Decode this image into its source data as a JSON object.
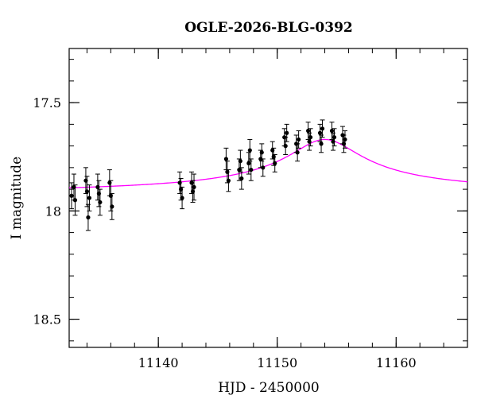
{
  "chart_data": {
    "type": "scatter",
    "title": "OGLE-2026-BLG-0392",
    "xlabel": "HJD - 2450000",
    "ylabel": "I magnitude",
    "xlim": [
      11132.5,
      11166
    ],
    "ylim": [
      17.25,
      18.63
    ],
    "y_inverted": true,
    "grid": false,
    "x_ticks": [
      11140,
      11150,
      11160
    ],
    "y_ticks": [
      17.5,
      18,
      18.5
    ],
    "x_tick_labels": [
      "11140",
      "11150",
      "11160"
    ],
    "y_tick_labels": [
      "17.5",
      "18",
      "18.5"
    ],
    "x_minor_step": 2,
    "y_minor_step": 0.1,
    "colors": {
      "points": "#000000",
      "model": "#ff00ff",
      "frame": "#000000"
    },
    "model": {
      "t0": 11154.0,
      "base_mag": 17.93,
      "peak_mag": 17.67,
      "width_days": 5.5
    },
    "series": [
      {
        "kind": "points_with_errors",
        "points": [
          [
            11132.7,
            17.93,
            0.06
          ],
          [
            11132.9,
            17.89,
            0.06
          ],
          [
            11133.0,
            17.95,
            0.07
          ],
          [
            11133.9,
            17.86,
            0.06
          ],
          [
            11134.0,
            17.91,
            0.07
          ],
          [
            11134.1,
            18.03,
            0.06
          ],
          [
            11134.2,
            17.94,
            0.06
          ],
          [
            11134.9,
            17.89,
            0.06
          ],
          [
            11135.0,
            17.92,
            0.06
          ],
          [
            11135.1,
            17.96,
            0.06
          ],
          [
            11135.9,
            17.87,
            0.06
          ],
          [
            11136.0,
            17.93,
            0.07
          ],
          [
            11136.1,
            17.98,
            0.06
          ],
          [
            11141.8,
            17.87,
            0.05
          ],
          [
            11141.9,
            17.9,
            0.05
          ],
          [
            11142.0,
            17.94,
            0.05
          ],
          [
            11142.8,
            17.87,
            0.05
          ],
          [
            11142.9,
            17.91,
            0.05
          ],
          [
            11143.0,
            17.89,
            0.06
          ],
          [
            11145.7,
            17.76,
            0.05
          ],
          [
            11145.8,
            17.82,
            0.05
          ],
          [
            11145.9,
            17.86,
            0.05
          ],
          [
            11146.8,
            17.81,
            0.05
          ],
          [
            11146.9,
            17.77,
            0.05
          ],
          [
            11147.0,
            17.85,
            0.05
          ],
          [
            11147.6,
            17.78,
            0.05
          ],
          [
            11147.7,
            17.72,
            0.05
          ],
          [
            11147.8,
            17.81,
            0.05
          ],
          [
            11148.6,
            17.76,
            0.04
          ],
          [
            11148.7,
            17.73,
            0.04
          ],
          [
            11148.8,
            17.8,
            0.04
          ],
          [
            11149.6,
            17.72,
            0.04
          ],
          [
            11149.7,
            17.75,
            0.04
          ],
          [
            11149.8,
            17.78,
            0.04
          ],
          [
            11150.6,
            17.66,
            0.04
          ],
          [
            11150.7,
            17.7,
            0.04
          ],
          [
            11150.8,
            17.64,
            0.04
          ],
          [
            11151.6,
            17.69,
            0.04
          ],
          [
            11151.7,
            17.73,
            0.04
          ],
          [
            11151.8,
            17.67,
            0.04
          ],
          [
            11152.6,
            17.63,
            0.04
          ],
          [
            11152.7,
            17.68,
            0.04
          ],
          [
            11152.8,
            17.66,
            0.04
          ],
          [
            11153.6,
            17.64,
            0.04
          ],
          [
            11153.7,
            17.69,
            0.04
          ],
          [
            11153.8,
            17.62,
            0.04
          ],
          [
            11154.6,
            17.63,
            0.04
          ],
          [
            11154.7,
            17.68,
            0.04
          ],
          [
            11154.8,
            17.66,
            0.04
          ],
          [
            11155.5,
            17.65,
            0.04
          ],
          [
            11155.6,
            17.69,
            0.04
          ],
          [
            11155.7,
            17.67,
            0.04
          ]
        ]
      },
      {
        "kind": "model_curve"
      }
    ]
  }
}
